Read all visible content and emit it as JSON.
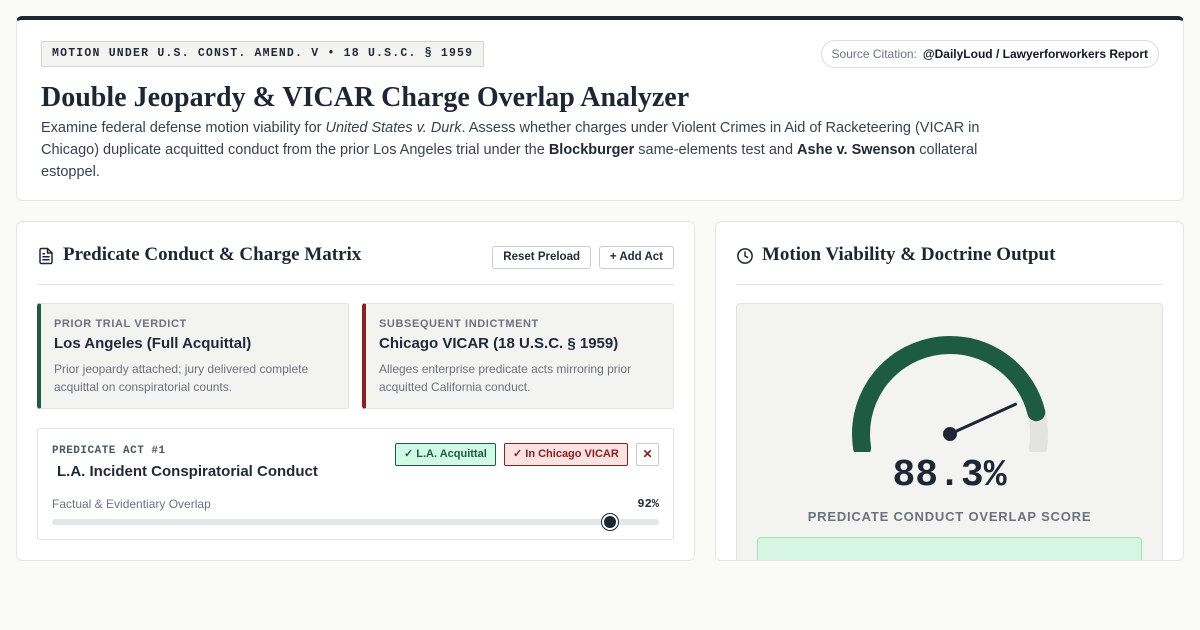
{
  "header": {
    "motion_badge": "MOTION UNDER U.S. CONST. AMEND. V • 18 U.S.C. § 1959",
    "citation_label": "Source Citation:",
    "citation_value": "@DailyLoud / Lawyerforworkers Report",
    "title": "Double Jeopardy & VICAR Charge Overlap Analyzer",
    "desc_1": "Examine federal defense motion viability for ",
    "desc_case": "United States v. Durk",
    "desc_2": ". Assess whether charges under Violent Crimes in Aid of Racketeering (VICAR in Chicago) duplicate acquitted conduct from the prior Los Angeles trial under the ",
    "desc_test": "Blockburger",
    "desc_3": " same-elements test and ",
    "desc_ashe": "Ashe v. Swenson",
    "desc_4": " collateral estoppel."
  },
  "matrix": {
    "title": "Predicate Conduct & Charge Matrix",
    "icon": "document-icon",
    "reset_label": "Reset Preload",
    "add_label": "+ Add Act",
    "prior": {
      "label": "PRIOR TRIAL VERDICT",
      "title": "Los Angeles (Full Acquittal)",
      "desc": "Prior jeopardy attached; jury delivered complete acquittal on conspiratorial counts."
    },
    "subsequent": {
      "label": "SUBSEQUENT INDICTMENT",
      "title": "Chicago VICAR (18 U.S.C. § 1959)",
      "desc": "Alleges enterprise predicate acts mirroring prior acquitted California conduct."
    },
    "acts": [
      {
        "number": "PREDICATE ACT #1",
        "title": "L.A. Incident Conspiratorial Conduct",
        "tag_la": "✓ L.A. Acquittal",
        "tag_chi": "✓ In Chicago VICAR",
        "remove": "✕",
        "overlap_label": "Factual & Evidentiary Overlap",
        "overlap_display": "92%",
        "overlap_value": 92
      }
    ]
  },
  "output": {
    "title": "Motion Viability & Doctrine Output",
    "icon": "clock-icon",
    "gauge_display": "88.3%",
    "gauge_value": 88.3,
    "gauge_label": "PREDICATE CONDUCT OVERLAP SCORE",
    "colors": {
      "gauge_fill": "#1e5b45",
      "gauge_track": "#e3e4df",
      "needle": "#1e2633"
    }
  }
}
